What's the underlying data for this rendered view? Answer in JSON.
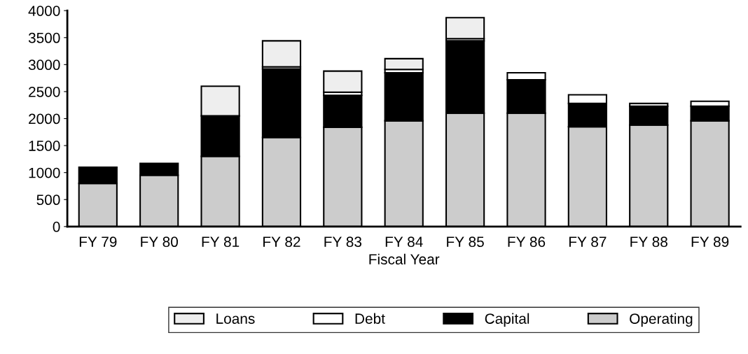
{
  "chart_data": {
    "type": "bar",
    "stacked": true,
    "xlabel": "Fiscal Year",
    "categories": [
      "FY 79",
      "FY 80",
      "FY 81",
      "FY 82",
      "FY 83",
      "FY 84",
      "FY 85",
      "FY 86",
      "FY 87",
      "FY 88",
      "FY 89"
    ],
    "series": [
      {
        "name": "Operating",
        "color": "#cccccc",
        "values": [
          800,
          950,
          1300,
          1650,
          1840,
          1960,
          2100,
          2100,
          1850,
          1880,
          1960
        ]
      },
      {
        "name": "Capital",
        "color": "#000000",
        "values": [
          300,
          220,
          750,
          1270,
          590,
          890,
          1340,
          620,
          430,
          350,
          270
        ]
      },
      {
        "name": "Debt",
        "color": "#ffffff",
        "values": [
          null,
          null,
          null,
          40,
          60,
          60,
          40,
          130,
          160,
          50,
          90
        ]
      },
      {
        "name": "Loans",
        "color": "#eeeeee",
        "values": [
          null,
          null,
          550,
          480,
          390,
          200,
          390,
          null,
          null,
          null,
          null
        ]
      }
    ],
    "ylim": [
      0,
      4000
    ],
    "yticks": [
      0,
      500,
      1000,
      1500,
      2000,
      2500,
      3000,
      3500,
      4000
    ],
    "grid": false,
    "legend": "bottom"
  }
}
